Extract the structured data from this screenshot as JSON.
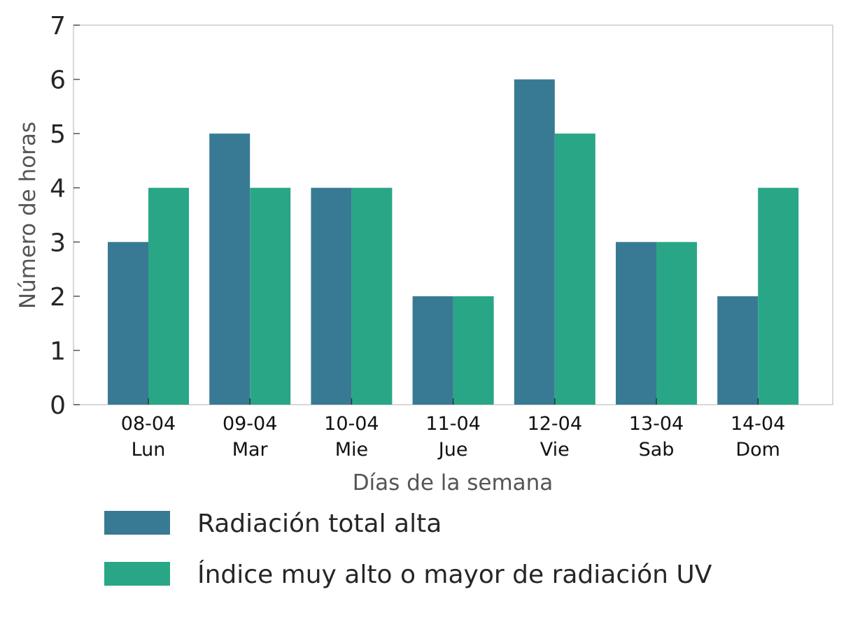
{
  "chart_data": {
    "type": "bar",
    "categories": [
      [
        "08-04",
        "Lun"
      ],
      [
        "09-04",
        "Mar"
      ],
      [
        "10-04",
        "Mie"
      ],
      [
        "11-04",
        "Jue"
      ],
      [
        "12-04",
        "Vie"
      ],
      [
        "13-04",
        "Sab"
      ],
      [
        "14-04",
        "Dom"
      ]
    ],
    "series": [
      {
        "name": "Radiación total alta",
        "color": "#387a94",
        "values": [
          3,
          5,
          4,
          2,
          6,
          3,
          2
        ]
      },
      {
        "name": "Índice muy alto o mayor de radiación UV",
        "color": "#29a686",
        "values": [
          4,
          4,
          4,
          2,
          5,
          3,
          4
        ]
      }
    ],
    "xlabel": "Días de la semana",
    "ylabel": "Número de horas",
    "ylim": [
      0,
      7
    ],
    "yticks": [
      0,
      1,
      2,
      3,
      4,
      5,
      6,
      7
    ],
    "grid": false,
    "legend_position": "bottom"
  }
}
